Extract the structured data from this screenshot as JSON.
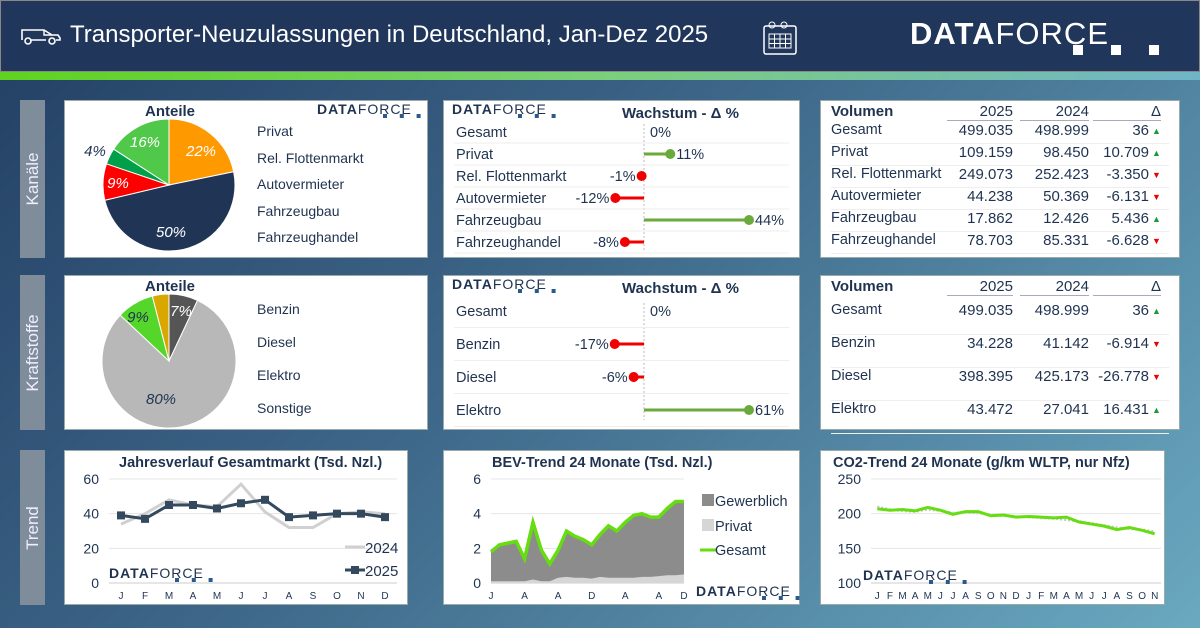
{
  "header": {
    "title": "Transporter-Neuzulassungen in Deutschland, Jan-Dez 2025",
    "logo_bold": "DATA",
    "logo_light": "FORCE",
    "van_icon": "van-icon",
    "calendar_icon": "calendar-icon"
  },
  "sections": [
    "Kanäle",
    "Kraftstoffe",
    "Trend"
  ],
  "logo": {
    "bold": "DATA",
    "light": "FORCE"
  },
  "kanaele": {
    "pie": {
      "title": "Anteile",
      "slices": [
        {
          "label": "Privat",
          "value": 22,
          "text": "22%",
          "color": "#ff9900"
        },
        {
          "label": "Rel. Flottenmarkt",
          "value": 50,
          "text": "50%",
          "color": "#203556"
        },
        {
          "label": "Autovermieter",
          "value": 9,
          "text": "9%",
          "color": "#ff0000"
        },
        {
          "label": "Fahrzeugbau",
          "value": 4,
          "text": "4%",
          "color": "#00a04a"
        },
        {
          "label": "Fahrzeughandel",
          "value": 16,
          "text": "16%",
          "color": "#50c84a"
        }
      ]
    },
    "growth": {
      "title": "Wachstum - Δ %",
      "rows": [
        {
          "label": "Gesamt",
          "value": 0,
          "text": "0%"
        },
        {
          "label": "Privat",
          "value": 11,
          "text": "11%"
        },
        {
          "label": "Rel. Flottenmarkt",
          "value": -1,
          "text": "-1%"
        },
        {
          "label": "Autovermieter",
          "value": -12,
          "text": "-12%"
        },
        {
          "label": "Fahrzeugbau",
          "value": 44,
          "text": "44%"
        },
        {
          "label": "Fahrzeughandel",
          "value": -8,
          "text": "-8%"
        }
      ]
    },
    "table": {
      "headers": [
        "Volumen",
        "2025",
        "2024",
        "Δ"
      ],
      "rows": [
        [
          "Gesamt",
          "499.035",
          "498.999",
          "36",
          "up"
        ],
        [
          "Privat",
          "109.159",
          "98.450",
          "10.709",
          "up"
        ],
        [
          "Rel. Flottenmarkt",
          "249.073",
          "252.423",
          "-3.350",
          "down"
        ],
        [
          "Autovermieter",
          "44.238",
          "50.369",
          "-6.131",
          "down"
        ],
        [
          "Fahrzeugbau",
          "17.862",
          "12.426",
          "5.436",
          "up"
        ],
        [
          "Fahrzeughandel",
          "78.703",
          "85.331",
          "-6.628",
          "down"
        ]
      ]
    }
  },
  "kraftstoffe": {
    "pie": {
      "title": "Anteile",
      "slices": [
        {
          "label": "Benzin",
          "value": 7,
          "text": "7%",
          "color": "#555555"
        },
        {
          "label": "Diesel",
          "value": 80,
          "text": "80%",
          "color": "#b8b8b8"
        },
        {
          "label": "Elektro",
          "value": 9,
          "text": "9%",
          "color": "#55d62a"
        },
        {
          "label": "Sonstige",
          "value": 4,
          "text": "",
          "color": "#d9a800"
        }
      ]
    },
    "growth": {
      "title": "Wachstum - Δ %",
      "rows": [
        {
          "label": "Gesamt",
          "value": 0,
          "text": "0%"
        },
        {
          "label": "Benzin",
          "value": -17,
          "text": "-17%"
        },
        {
          "label": "Diesel",
          "value": -6,
          "text": "-6%"
        },
        {
          "label": "Elektro",
          "value": 61,
          "text": "61%"
        }
      ]
    },
    "table": {
      "headers": [
        "Volumen",
        "2025",
        "2024",
        "Δ"
      ],
      "rows": [
        [
          "Gesamt",
          "499.035",
          "498.999",
          "36",
          "up"
        ],
        [
          "Benzin",
          "34.228",
          "41.142",
          "-6.914",
          "down"
        ],
        [
          "Diesel",
          "398.395",
          "425.173",
          "-26.778",
          "down"
        ],
        [
          "Elektro",
          "43.472",
          "27.041",
          "16.431",
          "up"
        ]
      ]
    }
  },
  "chart_data": [
    {
      "type": "line",
      "title": "Jahresverlauf Gesamtmarkt (Tsd. Nzl.)",
      "categories": [
        "J",
        "F",
        "M",
        "A",
        "M",
        "J",
        "J",
        "A",
        "S",
        "O",
        "N",
        "D"
      ],
      "ylim": [
        0,
        60
      ],
      "yticks": [
        0,
        20,
        40,
        60
      ],
      "grid": true,
      "legend": "bottom-right",
      "series": [
        {
          "name": "2024",
          "color": "#d0d0d0",
          "values": [
            34,
            40,
            48,
            45,
            44,
            57,
            41,
            32,
            32,
            40,
            41,
            40
          ]
        },
        {
          "name": "2025",
          "color": "#34495e",
          "values": [
            39,
            37,
            45,
            45,
            43,
            46,
            48,
            38,
            39,
            40,
            40,
            38
          ]
        }
      ]
    },
    {
      "type": "area",
      "title": "BEV-Trend 24 Monate (Tsd. Nzl.)",
      "xticklabels": [
        "J",
        "A",
        "A",
        "D",
        "A",
        "A",
        "D"
      ],
      "ylim": [
        0,
        6
      ],
      "yticks": [
        0,
        2,
        4,
        6
      ],
      "legend": "right",
      "series": [
        {
          "name": "Gewerblich",
          "color": "#8c8c8c",
          "values": [
            1.7,
            2.1,
            2.2,
            2.3,
            1.3,
            3.3,
            1.8,
            1.0,
            1.6,
            2.65,
            2.4,
            2.2,
            1.95,
            2.45,
            3.0,
            2.7,
            3.2,
            3.6,
            3.65,
            3.45,
            3.4,
            3.85,
            4.25,
            4.2
          ]
        },
        {
          "name": "Privat",
          "color": "#d6d6d6",
          "values": [
            0.1,
            0.1,
            0.1,
            0.1,
            0.1,
            0.2,
            0.1,
            0.1,
            0.3,
            0.35,
            0.3,
            0.3,
            0.25,
            0.35,
            0.3,
            0.3,
            0.3,
            0.3,
            0.35,
            0.35,
            0.4,
            0.45,
            0.45,
            0.5
          ]
        },
        {
          "name": "Gesamt",
          "color": "#66dd11",
          "values": [
            1.8,
            2.2,
            2.3,
            2.4,
            1.4,
            3.5,
            1.9,
            1.1,
            1.9,
            3.0,
            2.7,
            2.5,
            2.2,
            2.8,
            3.3,
            3.0,
            3.5,
            3.9,
            4.0,
            3.8,
            3.8,
            4.3,
            4.7,
            4.7
          ]
        }
      ]
    },
    {
      "type": "line",
      "title": "CO2-Trend 24 Monate (g/km WLTP, nur Nfz)",
      "categories": [
        "J",
        "F",
        "M",
        "A",
        "M",
        "J",
        "J",
        "A",
        "S",
        "O",
        "N",
        "D",
        "J",
        "F",
        "M",
        "A",
        "M",
        "J",
        "J",
        "A",
        "S",
        "O",
        "N"
      ],
      "ylim": [
        100,
        250
      ],
      "yticks": [
        100,
        150,
        200,
        250
      ],
      "grid": true,
      "series": [
        {
          "color": "#c8c8c8",
          "dashed": true,
          "values": [
            210,
            206,
            204,
            203,
            206,
            204,
            201,
            202,
            201,
            198,
            197,
            196,
            195,
            194,
            193,
            191,
            189,
            186,
            183,
            180,
            178,
            177,
            174
          ]
        },
        {
          "color": "#66dd11",
          "values": [
            207,
            205,
            206,
            204,
            209,
            205,
            199,
            203,
            203,
            197,
            198,
            195,
            196,
            195,
            194,
            195,
            188,
            185,
            182,
            177,
            180,
            176,
            171
          ]
        }
      ]
    }
  ]
}
